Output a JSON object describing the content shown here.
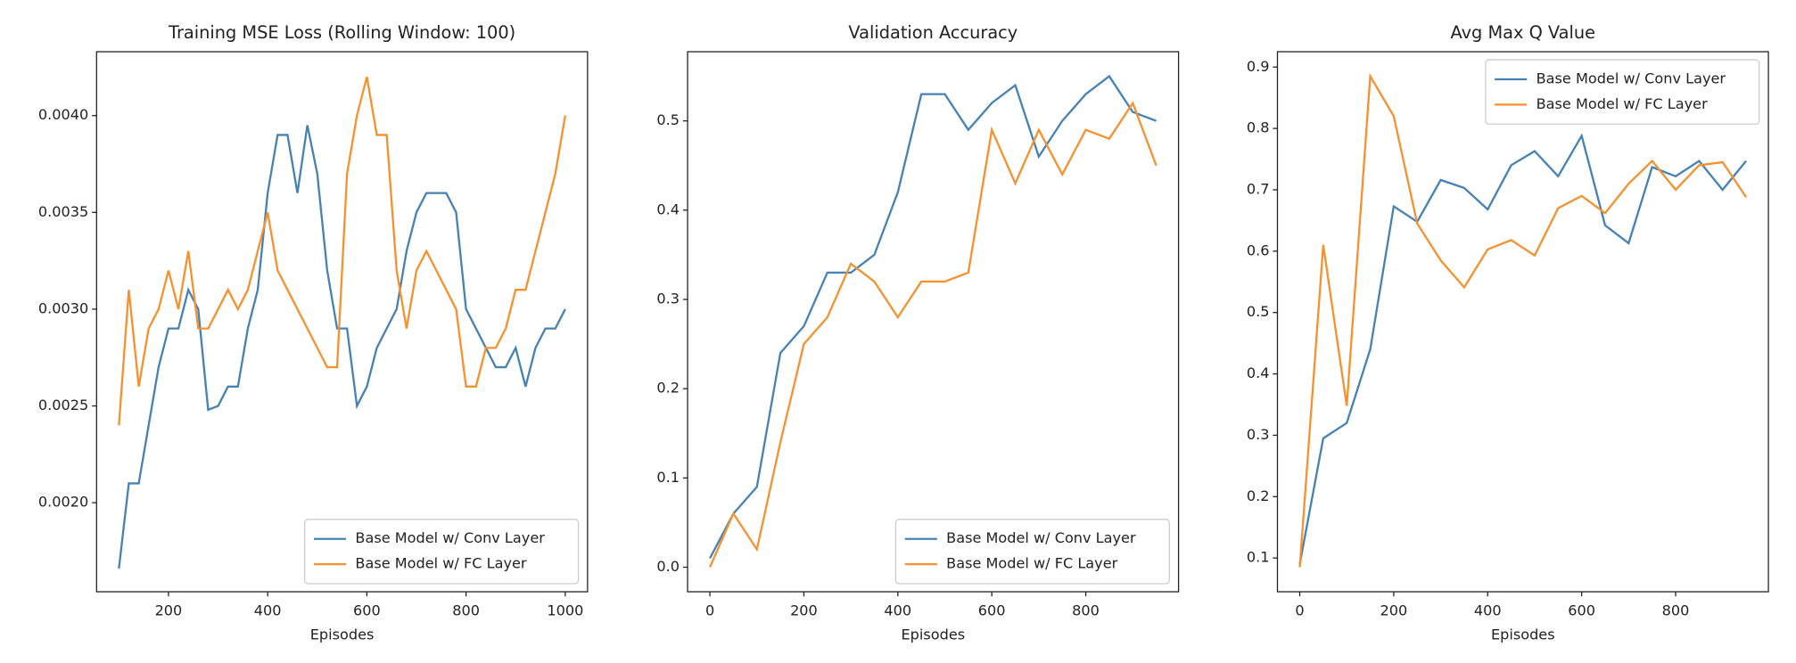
{
  "chart_data": [
    {
      "type": "line",
      "title": "Training MSE Loss (Rolling Window: 100)",
      "xlabel": "Episodes",
      "x": [
        100,
        120,
        140,
        160,
        180,
        200,
        220,
        240,
        260,
        280,
        300,
        320,
        340,
        360,
        380,
        400,
        420,
        440,
        460,
        480,
        500,
        520,
        540,
        560,
        580,
        600,
        620,
        640,
        660,
        680,
        700,
        720,
        740,
        760,
        780,
        800,
        820,
        840,
        860,
        880,
        900,
        920,
        940,
        960,
        980,
        1000
      ],
      "series": [
        {
          "name": "Base Model w/ Conv Layer",
          "color": "#4682b4",
          "values": [
            0.00166,
            0.0021,
            0.0021,
            0.0024,
            0.0027,
            0.0029,
            0.0029,
            0.0031,
            0.003,
            0.00248,
            0.0025,
            0.0026,
            0.0026,
            0.0029,
            0.0031,
            0.0036,
            0.0039,
            0.0039,
            0.0036,
            0.00395,
            0.0037,
            0.0032,
            0.0029,
            0.0029,
            0.0025,
            0.0026,
            0.0028,
            0.0029,
            0.003,
            0.0033,
            0.0035,
            0.0036,
            0.0036,
            0.0036,
            0.0035,
            0.003,
            0.0029,
            0.0028,
            0.0027,
            0.0027,
            0.0028,
            0.0026,
            0.0028,
            0.0029,
            0.0029,
            0.003
          ]
        },
        {
          "name": "Base Model w/ FC Layer",
          "color": "#f5922f",
          "values": [
            0.0024,
            0.0031,
            0.0026,
            0.0029,
            0.003,
            0.0032,
            0.003,
            0.0033,
            0.0029,
            0.0029,
            0.003,
            0.0031,
            0.003,
            0.0031,
            0.0033,
            0.0035,
            0.0032,
            0.0031,
            0.003,
            0.0029,
            0.0028,
            0.0027,
            0.0027,
            0.0037,
            0.004,
            0.0042,
            0.0039,
            0.0039,
            0.0032,
            0.0029,
            0.0032,
            0.0033,
            0.0032,
            0.0031,
            0.003,
            0.0026,
            0.0026,
            0.0028,
            0.0028,
            0.0029,
            0.0031,
            0.0031,
            0.0033,
            0.0035,
            0.0037,
            0.004
          ]
        }
      ],
      "xlim": [
        55,
        1045
      ],
      "ylim": [
        0.00154,
        0.00433
      ],
      "xticks": [
        200,
        400,
        600,
        800,
        1000
      ],
      "yticks": [
        {
          "value": 0.002,
          "label": "0.0020"
        },
        {
          "value": 0.0025,
          "label": "0.0025"
        },
        {
          "value": 0.003,
          "label": "0.0030"
        },
        {
          "value": 0.0035,
          "label": "0.0035"
        },
        {
          "value": 0.004,
          "label": "0.0040"
        }
      ],
      "legend": "lower right"
    },
    {
      "type": "line",
      "title": "Validation Accuracy",
      "xlabel": "Episodes",
      "x": [
        0,
        50,
        100,
        150,
        200,
        250,
        300,
        350,
        400,
        450,
        500,
        550,
        600,
        650,
        700,
        750,
        800,
        850,
        900,
        950
      ],
      "series": [
        {
          "name": "Base Model w/ Conv Layer",
          "color": "#4682b4",
          "values": [
            0.01,
            0.06,
            0.09,
            0.24,
            0.27,
            0.33,
            0.33,
            0.35,
            0.42,
            0.53,
            0.53,
            0.49,
            0.52,
            0.54,
            0.46,
            0.5,
            0.53,
            0.55,
            0.51,
            0.5
          ]
        },
        {
          "name": "Base Model w/ FC Layer",
          "color": "#f5922f",
          "values": [
            0.0,
            0.06,
            0.02,
            0.14,
            0.25,
            0.28,
            0.34,
            0.32,
            0.28,
            0.32,
            0.32,
            0.33,
            0.49,
            0.43,
            0.49,
            0.44,
            0.49,
            0.48,
            0.52,
            0.45
          ]
        }
      ],
      "xlim": [
        -47.5,
        997.5
      ],
      "ylim": [
        -0.0275,
        0.5775
      ],
      "xticks": [
        0,
        200,
        400,
        600,
        800
      ],
      "yticks": [
        {
          "value": 0,
          "label": "0.0"
        },
        0.1,
        0.2,
        0.3,
        0.4,
        0.5
      ],
      "legend": "lower right"
    },
    {
      "type": "line",
      "title": "Avg Max Q Value",
      "xlabel": "Episodes",
      "x": [
        0,
        50,
        100,
        150,
        200,
        250,
        300,
        350,
        400,
        450,
        500,
        550,
        600,
        650,
        700,
        750,
        800,
        850,
        900,
        950
      ],
      "series": [
        {
          "name": "Base Model w/ Conv Layer",
          "color": "#4682b4",
          "values": [
            0.09,
            0.295,
            0.32,
            0.44,
            0.673,
            0.648,
            0.716,
            0.703,
            0.668,
            0.74,
            0.763,
            0.722,
            0.788,
            0.642,
            0.613,
            0.737,
            0.722,
            0.747,
            0.7,
            0.747
          ]
        },
        {
          "name": "Base Model w/ FC Layer",
          "color": "#f5922f",
          "values": [
            0.085,
            0.61,
            0.348,
            0.885,
            0.82,
            0.645,
            0.585,
            0.541,
            0.603,
            0.618,
            0.593,
            0.67,
            0.69,
            0.662,
            0.71,
            0.747,
            0.7,
            0.74,
            0.745,
            0.688
          ]
        }
      ],
      "xlim": [
        -47.5,
        997.5
      ],
      "ylim": [
        0.045,
        0.925
      ],
      "xticks": [
        0,
        200,
        400,
        600,
        800
      ],
      "yticks": [
        0.1,
        0.2,
        0.3,
        0.4,
        0.5,
        0.6,
        0.7,
        0.8,
        0.9
      ],
      "legend": "upper right"
    }
  ]
}
